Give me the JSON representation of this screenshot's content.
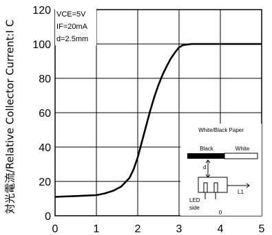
{
  "chart_data": {
    "type": "line",
    "title": "",
    "xlabel": "",
    "ylabel": "対光電流/Relative Collector Current:I C",
    "xlim": [
      0,
      5
    ],
    "ylim": [
      0,
      120
    ],
    "x_ticks": [
      "0",
      "1",
      "2",
      "3",
      "4",
      "5"
    ],
    "y_ticks": [
      "0",
      "20",
      "40",
      "60",
      "80",
      "100",
      "120"
    ],
    "grid": true,
    "conditions": {
      "vce": "VCE=5V",
      "if": "IF=20mA",
      "d": "d=2.5mm"
    },
    "series": [
      {
        "x": [
          0,
          0.5,
          1.0,
          1.2,
          1.4,
          1.6,
          1.8,
          1.9,
          2.0,
          2.1,
          2.2,
          2.3,
          2.4,
          2.5,
          2.6,
          2.7,
          2.8,
          2.9,
          3.0,
          3.1,
          3.2,
          3.3,
          3.5,
          4.0,
          5.0
        ],
        "y": [
          11,
          11.5,
          12,
          13,
          14.5,
          17,
          22,
          27,
          34,
          43,
          52,
          61,
          69,
          76,
          82,
          87,
          91.5,
          95,
          98,
          99.4,
          99.7,
          100,
          100,
          100,
          100
        ]
      }
    ],
    "inset": {
      "title": "White/Black Paper",
      "black_label": "Black",
      "white_label": "White",
      "d_label": "d",
      "l1_label": "L1",
      "led_label": "LED",
      "side_label": "side",
      "zero_label": "0"
    }
  }
}
